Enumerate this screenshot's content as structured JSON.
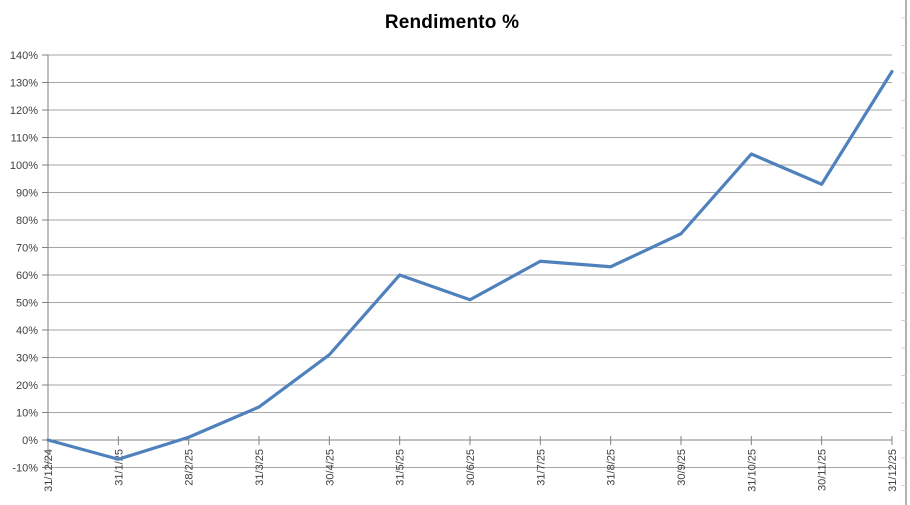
{
  "chart_data": {
    "type": "line",
    "title": "Rendimento %",
    "categories": [
      "31/12/24",
      "31/1/25",
      "28/2/25",
      "31/3/25",
      "30/4/25",
      "31/5/25",
      "30/6/25",
      "31/7/25",
      "31/8/25",
      "30/9/25",
      "31/10/25",
      "30/11/25",
      "31/12/25"
    ],
    "series": [
      {
        "name": "Rendimento %",
        "values": [
          0,
          -7,
          1,
          12,
          31,
          60,
          51,
          65,
          63,
          75,
          104,
          93,
          134
        ]
      }
    ],
    "xlabel": "",
    "ylabel": "",
    "ylim": [
      -10,
      140
    ],
    "ytick_step": 10,
    "ytick_labels": [
      "140%",
      "130%",
      "120%",
      "110%",
      "100%",
      "90%",
      "80%",
      "70%",
      "60%",
      "50%",
      "40%",
      "30%",
      "20%",
      "10%",
      "0%",
      "-10%"
    ],
    "grid": "horizontal",
    "legend": "none",
    "x_labels_rotation_deg": -90,
    "colors": {
      "series_line": "#4F81BD",
      "gridline": "#A6A6A6",
      "axis_line": "#808080",
      "tick_label": "#404040",
      "title": "#000000",
      "right_edge_line": "#999999",
      "right_edge_tick": "#D0D0D0",
      "background": "#FFFFFF"
    }
  }
}
